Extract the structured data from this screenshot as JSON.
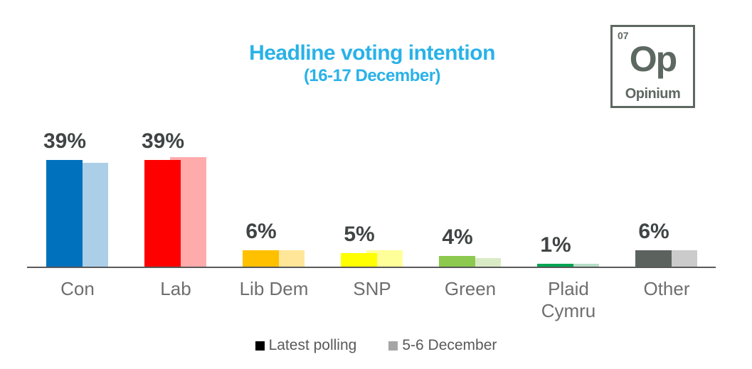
{
  "title": {
    "line1": "Headline voting intention",
    "line2": "(16-17 December)",
    "color": "#29B2E8"
  },
  "logo": {
    "number": "07",
    "symbol": "Op",
    "name": "Opinium",
    "color": "#5D6861"
  },
  "legend": [
    {
      "label": "Latest polling",
      "swatch": "#000000"
    },
    {
      "label": "5-6 December",
      "swatch": "#A6A6A6"
    }
  ],
  "chart_data": {
    "type": "bar",
    "title": "Headline voting intention",
    "subtitle": "(16-17 December)",
    "categories": [
      "Con",
      "Lab",
      "Lib Dem",
      "SNP",
      "Green",
      "Plaid Cymru",
      "Other"
    ],
    "series": [
      {
        "name": "Latest polling",
        "values": [
          39,
          39,
          6,
          5,
          4,
          1,
          6
        ],
        "colors": [
          "#0071BC",
          "#FE0000",
          "#FFC000",
          "#FFFF00",
          "#8CC94E",
          "#00A551",
          "#5C635F"
        ]
      },
      {
        "name": "5-6 December",
        "values": [
          38,
          40,
          6,
          6,
          3,
          1,
          6
        ],
        "colors": [
          "#ACCFE8",
          "#FFABAB",
          "#FFE699",
          "#FFFF99",
          "#D9EBC4",
          "#B7DCC6",
          "#CBCBCB"
        ]
      }
    ],
    "data_labels": [
      "39%",
      "39%",
      "6%",
      "5%",
      "4%",
      "1%",
      "6%"
    ],
    "xlabel": "",
    "ylabel": "",
    "ylim": [
      0,
      45
    ],
    "grid": false,
    "legend_position": "bottom"
  }
}
